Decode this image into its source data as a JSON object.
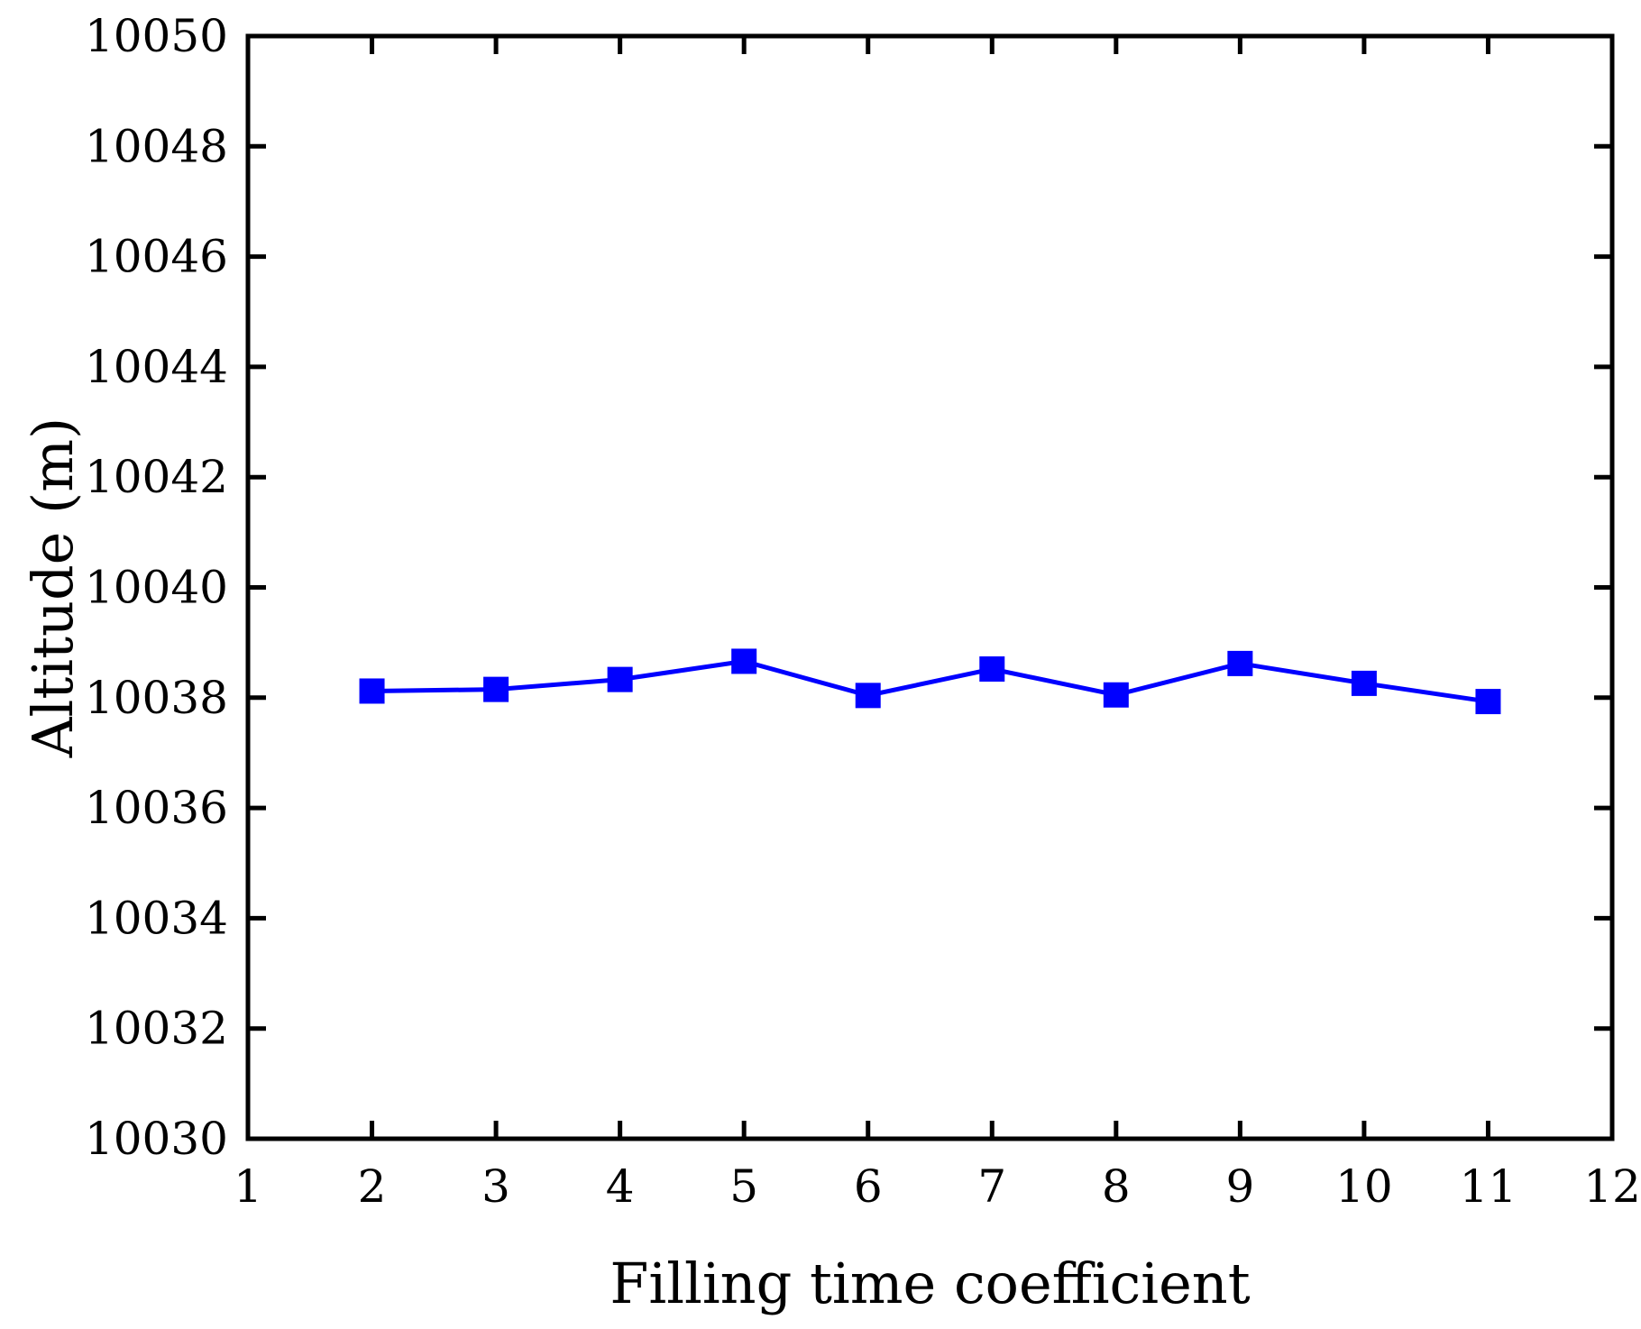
{
  "chart_data": {
    "type": "line",
    "title": "",
    "xlabel": "Filling time coefficient",
    "ylabel": "Altitude (m)",
    "xlim": [
      1,
      12
    ],
    "ylim": [
      10030,
      10050
    ],
    "xticks": [
      1,
      2,
      3,
      4,
      5,
      6,
      7,
      8,
      9,
      10,
      11,
      12
    ],
    "yticks": [
      10030,
      10032,
      10034,
      10036,
      10038,
      10040,
      10042,
      10044,
      10046,
      10048,
      10050
    ],
    "grid": false,
    "legend": "none",
    "series": [
      {
        "color": "#0000ff",
        "marker": "square",
        "x": [
          2,
          3,
          4,
          5,
          6,
          7,
          8,
          9,
          10,
          11
        ],
        "y": [
          10038.12,
          10038.15,
          10038.33,
          10038.66,
          10038.04,
          10038.52,
          10038.05,
          10038.62,
          10038.26,
          10037.93
        ]
      }
    ]
  }
}
